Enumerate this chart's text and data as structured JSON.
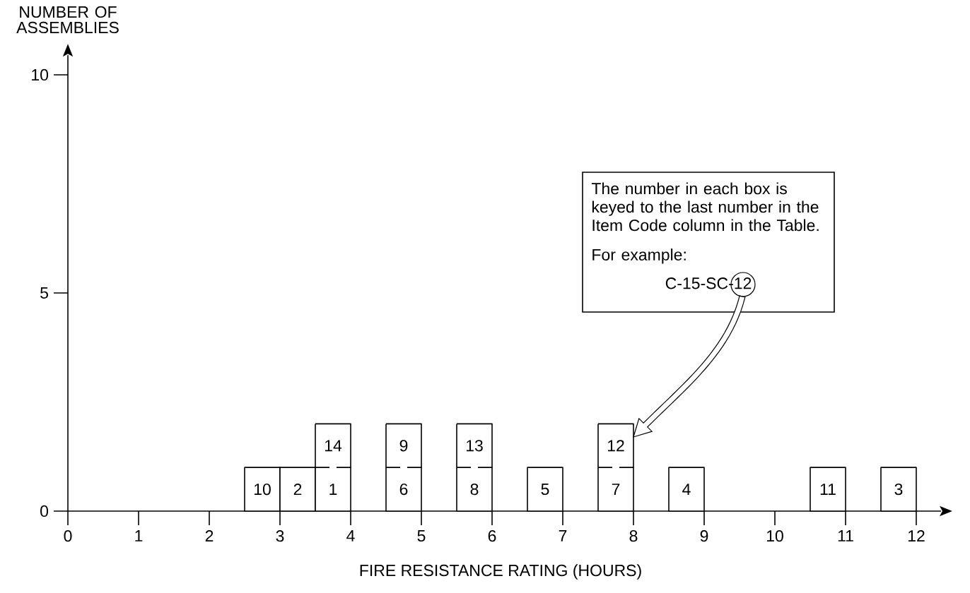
{
  "chart_data": {
    "type": "bar",
    "stacked": true,
    "xlabel": "FIRE RESISTANCE RATING (HOURS)",
    "ylabel": "NUMBER OF ASSEMBLIES",
    "x": [
      2.75,
      3.25,
      3.75,
      4.75,
      5.75,
      6.75,
      7.75,
      8.75,
      10.75,
      11.75
    ],
    "series": [
      {
        "color": "#ffffff",
        "values": [
          1,
          1,
          1,
          1,
          1,
          1,
          1,
          1,
          1,
          1
        ]
      },
      {
        "color": "#ffffff",
        "values": [
          null,
          null,
          1,
          1,
          1,
          null,
          1,
          null,
          null,
          null
        ]
      }
    ],
    "xlim": [
      0,
      12.35
    ],
    "ylim": [
      0,
      10.45
    ],
    "xticks": [
      0,
      1,
      2,
      3,
      4,
      5,
      6,
      7,
      8,
      9,
      10,
      11,
      12
    ],
    "yticks": [
      0,
      5,
      10
    ],
    "annotations": [
      "10",
      "2",
      "1",
      "6",
      "8",
      "5",
      "7",
      "4",
      "11",
      "3",
      "14",
      "9",
      "13",
      "12",
      "The number in each box is keyed to the last number in the Item Code column in the Table.",
      "For example:",
      "C-15-SC-12"
    ]
  }
}
